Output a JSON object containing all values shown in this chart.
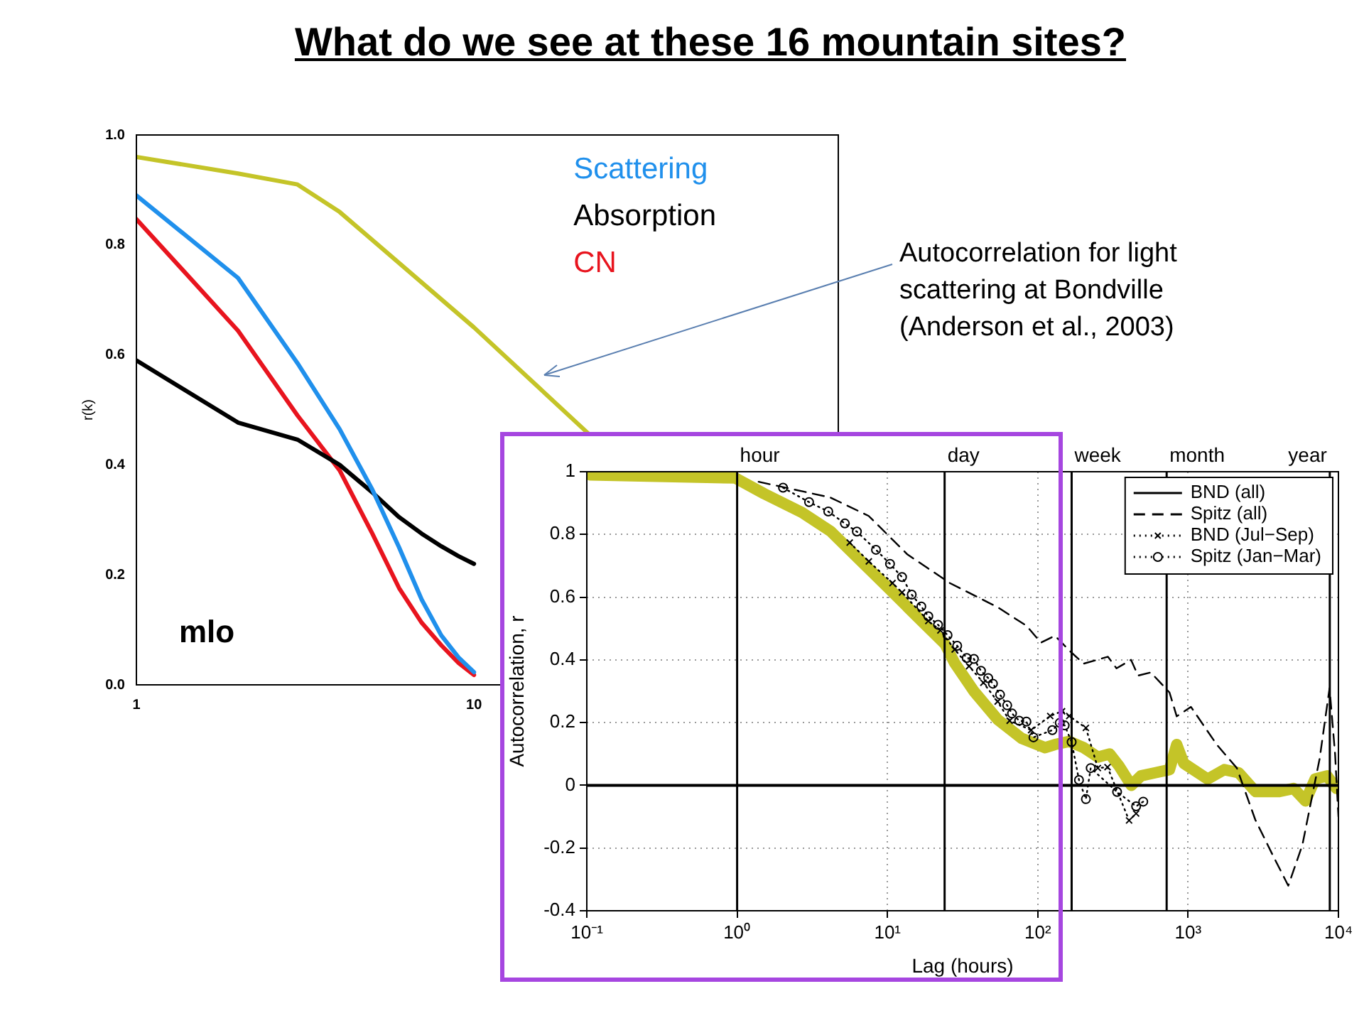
{
  "chart_data": [
    {
      "type": "line",
      "title": "What do we see at these 16 mountain sites?",
      "ylabel": "r(k)",
      "log": "x",
      "legend": "top right",
      "xlim": [
        1,
        120
      ],
      "xticks": [
        1,
        10
      ],
      "ylim": [
        0,
        1
      ],
      "yticks": [
        {
          "value": 0,
          "label": "0.0"
        },
        {
          "value": 0.2,
          "label": "0.2"
        },
        {
          "value": 0.4,
          "label": "0.4"
        },
        {
          "value": 0.6,
          "label": "0.6"
        },
        {
          "value": 0.8,
          "label": "0.8"
        },
        {
          "value": 1,
          "label": "1.0"
        }
      ],
      "annotations": [
        "mlo"
      ],
      "series": [
        {
          "name": "Scattering",
          "color": "#2090ec",
          "line_style": "solid",
          "x": [
            1,
            2,
            3,
            4,
            5,
            6,
            7,
            8,
            9,
            10
          ],
          "values": [
            0.89,
            0.74,
            0.585,
            0.465,
            0.355,
            0.25,
            0.155,
            0.09,
            0.05,
            0.023
          ]
        },
        {
          "name": "Absorption",
          "color": "#000000",
          "line_style": "solid",
          "x": [
            1,
            2,
            3,
            4,
            5,
            6,
            7,
            8,
            9,
            10
          ],
          "values": [
            0.59,
            0.477,
            0.446,
            0.4,
            0.35,
            0.305,
            0.275,
            0.252,
            0.234,
            0.22
          ]
        },
        {
          "name": "CN",
          "color": "#e8141e",
          "line_style": "solid",
          "x": [
            1,
            2,
            3,
            4,
            5,
            6,
            7,
            8,
            9,
            10
          ],
          "values": [
            0.847,
            0.644,
            0.49,
            0.39,
            0.275,
            0.176,
            0.113,
            0.072,
            0.04,
            0.018
          ]
        },
        {
          "color": "#c4c428",
          "line_style": "solid",
          "x": [
            1,
            2,
            3,
            4,
            10,
            22
          ],
          "values": [
            0.96,
            0.93,
            0.91,
            0.86,
            0.65,
            0.455
          ]
        }
      ]
    },
    {
      "type": "line",
      "xlabel": "Lag (hours)",
      "ylabel": "Autocorrelation, r",
      "log": "x",
      "grid": true,
      "legend": "top right",
      "xlim": [
        0.1,
        10000
      ],
      "xticks": [
        {
          "value": 0.1,
          "label": "10⁻¹"
        },
        {
          "value": 1,
          "label": "10⁰"
        },
        {
          "value": 10,
          "label": "10¹"
        },
        {
          "value": 100,
          "label": "10²"
        },
        {
          "value": 1000,
          "label": "10³"
        },
        {
          "value": 10000,
          "label": "10⁴"
        }
      ],
      "ylim": [
        -0.4,
        1
      ],
      "yticks": [
        -0.4,
        -0.2,
        0,
        0.2,
        0.4,
        0.6,
        0.8,
        1
      ],
      "ref_lines": [
        {
          "axis": "x",
          "value": 1,
          "label": "hour"
        },
        {
          "axis": "x",
          "value": 24,
          "label": "day"
        },
        {
          "axis": "x",
          "value": 168,
          "label": "week"
        },
        {
          "axis": "x",
          "value": 720,
          "label": "month"
        },
        {
          "axis": "x",
          "value": 8760,
          "label": "year"
        },
        {
          "axis": "y",
          "value": 0
        }
      ],
      "annotations": [
        "Autocorrelation for light scattering at Bondville (Anderson et al., 2003)"
      ],
      "series": [
        {
          "name": "BND (all)",
          "color": "#000000",
          "line_style": "solid",
          "marker": "none"
        },
        {
          "name": "Spitz (all)",
          "color": "#000000",
          "line_style": "dashed",
          "marker": "none",
          "x": [
            1.39,
            4.16,
            7.5,
            13.6,
            26,
            54,
            84,
            105,
            130,
            162,
            202,
            293,
            334,
            417,
            465,
            565,
            752,
            840,
            1045,
            1550,
            2110,
            2800,
            3720,
            4640,
            5760,
            7500,
            8730,
            9500,
            10000
          ],
          "values": [
            0.968,
            0.918,
            0.859,
            0.736,
            0.645,
            0.568,
            0.509,
            0.455,
            0.477,
            0.43,
            0.388,
            0.41,
            0.373,
            0.4,
            0.35,
            0.36,
            0.296,
            0.22,
            0.25,
            0.13,
            0.055,
            -0.11,
            -0.23,
            -0.32,
            -0.19,
            0.085,
            0.31,
            0.1,
            -0.1
          ]
        },
        {
          "name": "BND (Jul−Sep)",
          "color": "#000000",
          "line_style": "dotted",
          "marker": "cross",
          "x": [
            5.61,
            7.52,
            10.8,
            12.5,
            18.7,
            22.5,
            28,
            34.9,
            43.5,
            54.1,
            65,
            90.3,
            121,
            145,
            162,
            209,
            251,
            291,
            405,
            451
          ],
          "values": [
            0.774,
            0.714,
            0.645,
            0.615,
            0.524,
            0.494,
            0.433,
            0.38,
            0.327,
            0.267,
            0.206,
            0.176,
            0.221,
            0.236,
            0.221,
            0.183,
            0.055,
            0.058,
            -0.112,
            -0.09
          ]
        },
        {
          "name": "Spitz (Jan−Mar)",
          "color": "#000000",
          "line_style": "dotted",
          "marker": "circle",
          "x": [
            2.02,
            3.01,
            4.04,
            5.21,
            6.26,
            8.39,
            10.4,
            12.5,
            14.5,
            16.8,
            18.7,
            21.7,
            25.1,
            29.1,
            33.7,
            37.6,
            41.9,
            46.8,
            50.3,
            56.1,
            62.6,
            67.4,
            75.2,
            84,
            93.6,
            125,
            140,
            151,
            168,
            188,
            209,
            225,
            337,
            451,
            503
          ],
          "values": [
            0.949,
            0.903,
            0.873,
            0.835,
            0.809,
            0.751,
            0.706,
            0.664,
            0.608,
            0.57,
            0.539,
            0.512,
            0.479,
            0.445,
            0.406,
            0.403,
            0.365,
            0.342,
            0.324,
            0.289,
            0.255,
            0.229,
            0.206,
            0.203,
            0.153,
            0.176,
            0.199,
            0.191,
            0.138,
            0.017,
            -0.044,
            0.055,
            -0.021,
            -0.067,
            -0.052
          ]
        },
        {
          "color": "#c4c428",
          "line_style": "solid",
          "marker": "none",
          "x": [
            0.105,
            0.97,
            1.51,
            2.7,
            4.19,
            6.5,
            10.1,
            15.6,
            24.2,
            28,
            37.6,
            54,
            78,
            112,
            130,
            162,
            202,
            251,
            301,
            349,
            419,
            485,
            604,
            752,
            840,
            936,
            1349,
            1741,
            2171,
            2808,
            4044,
            5036,
            6040,
            6998,
            8395,
            9705
          ],
          "values": [
            0.99,
            0.98,
            0.93,
            0.87,
            0.81,
            0.72,
            0.63,
            0.54,
            0.45,
            0.39,
            0.3,
            0.21,
            0.15,
            0.12,
            0.13,
            0.14,
            0.12,
            0.09,
            0.1,
            0.06,
            0,
            0.03,
            0.04,
            0.05,
            0.13,
            0.07,
            0.02,
            0.05,
            0.04,
            -0.02,
            -0.02,
            -0.01,
            -0.05,
            0.02,
            0.03,
            -0.01
          ]
        }
      ]
    }
  ]
}
